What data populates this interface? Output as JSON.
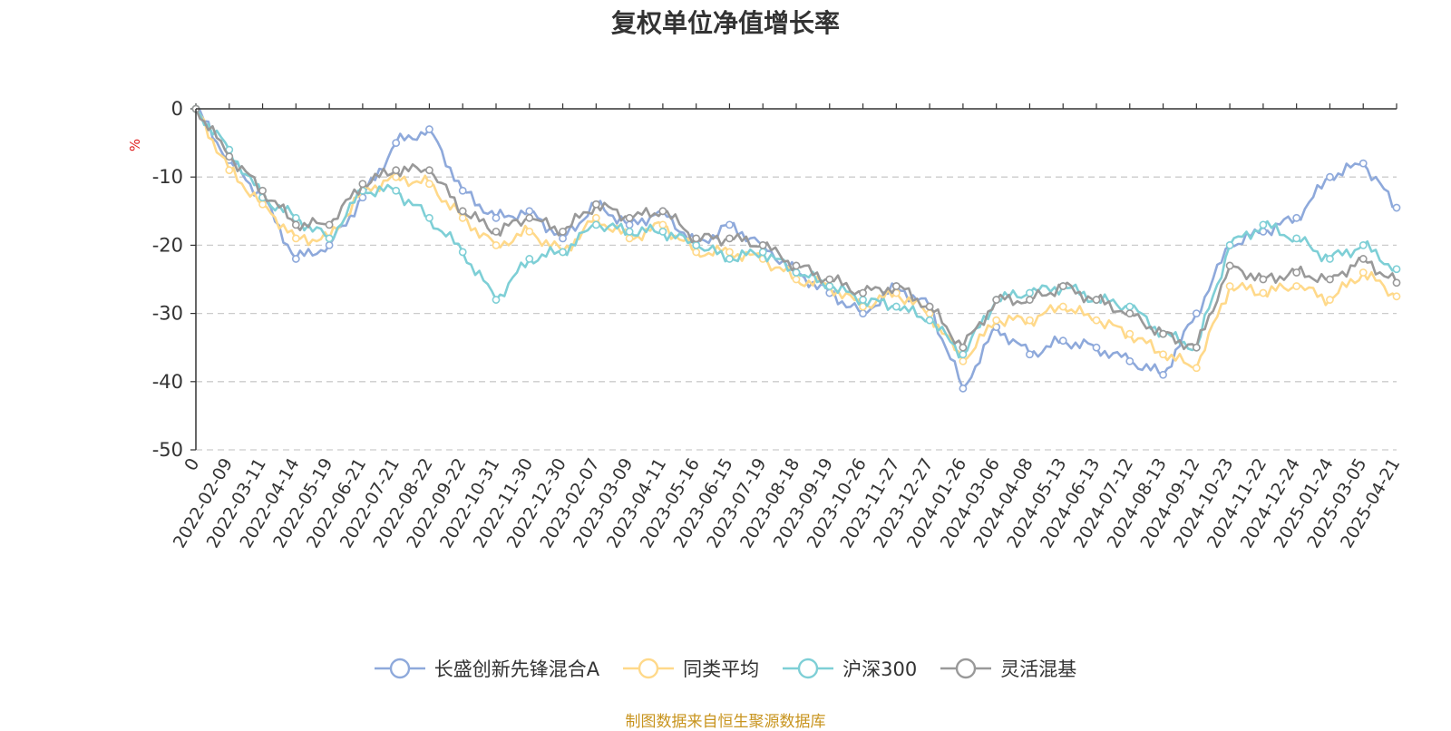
{
  "chart_data": {
    "type": "line",
    "title": "复权单位净值增长率",
    "ylabel": "%",
    "ylim": [
      -50,
      0
    ],
    "yticks": [
      0,
      -10,
      -20,
      -30,
      -40,
      -50
    ],
    "xticks": [
      "0",
      "2022-02-09",
      "2022-03-11",
      "2022-04-14",
      "2022-05-19",
      "2022-06-21",
      "2022-07-21",
      "2022-08-22",
      "2022-09-22",
      "2022-10-31",
      "2022-11-30",
      "2022-12-30",
      "2023-02-07",
      "2023-03-09",
      "2023-04-11",
      "2023-05-16",
      "2023-06-15",
      "2023-07-19",
      "2023-08-18",
      "2023-09-19",
      "2023-10-26",
      "2023-11-27",
      "2023-12-27",
      "2024-01-26",
      "2024-03-06",
      "2024-04-08",
      "2024-05-13",
      "2024-06-13",
      "2024-07-12",
      "2024-08-13",
      "2024-09-12",
      "2024-10-23",
      "2024-11-22",
      "2024-12-24",
      "2025-01-24",
      "2025-03-05",
      "2025-04-21"
    ],
    "grid": "horizontal dashed",
    "legend_position": "bottom",
    "x_index": [
      0,
      1,
      2,
      3,
      4,
      5,
      6,
      7,
      8,
      9,
      10,
      11,
      12,
      13,
      14,
      15,
      16,
      17,
      18,
      19,
      20,
      21,
      22,
      23,
      24,
      25,
      26,
      27,
      28,
      29,
      30,
      31,
      32,
      33,
      34,
      35,
      36
    ],
    "series": [
      {
        "name": "长盛创新先锋混合A",
        "color": "#8ea9db",
        "values": [
          0,
          -7.5,
          -13,
          -22,
          -20,
          -13,
          -5,
          -3,
          -12,
          -16,
          -15,
          -19,
          -14,
          -17,
          -15,
          -20,
          -17,
          -20,
          -24,
          -27,
          -30,
          -26,
          -29,
          -41,
          -32,
          -36,
          -34,
          -35,
          -37,
          -39,
          -30,
          -20,
          -18,
          -16,
          -10,
          -8,
          -14.5
        ]
      },
      {
        "name": "同类平均",
        "color": "#ffd98a",
        "values": [
          0,
          -9,
          -14,
          -19,
          -19,
          -12,
          -10,
          -11,
          -16,
          -20,
          -18,
          -21,
          -16,
          -19,
          -17,
          -21,
          -21,
          -22,
          -25,
          -26,
          -29,
          -27,
          -30,
          -37,
          -31,
          -31,
          -29,
          -31,
          -33,
          -36,
          -38,
          -26,
          -27,
          -26,
          -28,
          -24,
          -27.5
        ]
      },
      {
        "name": "沪深300",
        "color": "#7ecfd6",
        "values": [
          0,
          -6,
          -13,
          -16,
          -19,
          -12,
          -12,
          -16,
          -21,
          -28,
          -22,
          -21,
          -17,
          -18,
          -18,
          -20,
          -22,
          -21,
          -24,
          -26,
          -28,
          -29,
          -31,
          -36,
          -28,
          -27,
          -26,
          -28,
          -29,
          -33,
          -35,
          -20,
          -17,
          -19,
          -22,
          -20,
          -23.5
        ]
      },
      {
        "name": "灵活混基",
        "color": "#999999",
        "values": [
          0,
          -7,
          -12,
          -17,
          -17,
          -11,
          -9,
          -9,
          -15,
          -18,
          -16,
          -18,
          -14,
          -16,
          -15,
          -19,
          -19,
          -20,
          -23,
          -25,
          -27,
          -26,
          -29,
          -35,
          -28,
          -28,
          -26,
          -28,
          -30,
          -33,
          -35,
          -23,
          -25,
          -24,
          -25,
          -22,
          -25.5
        ]
      }
    ]
  },
  "source_note": "制图数据来自恒生聚源数据库"
}
